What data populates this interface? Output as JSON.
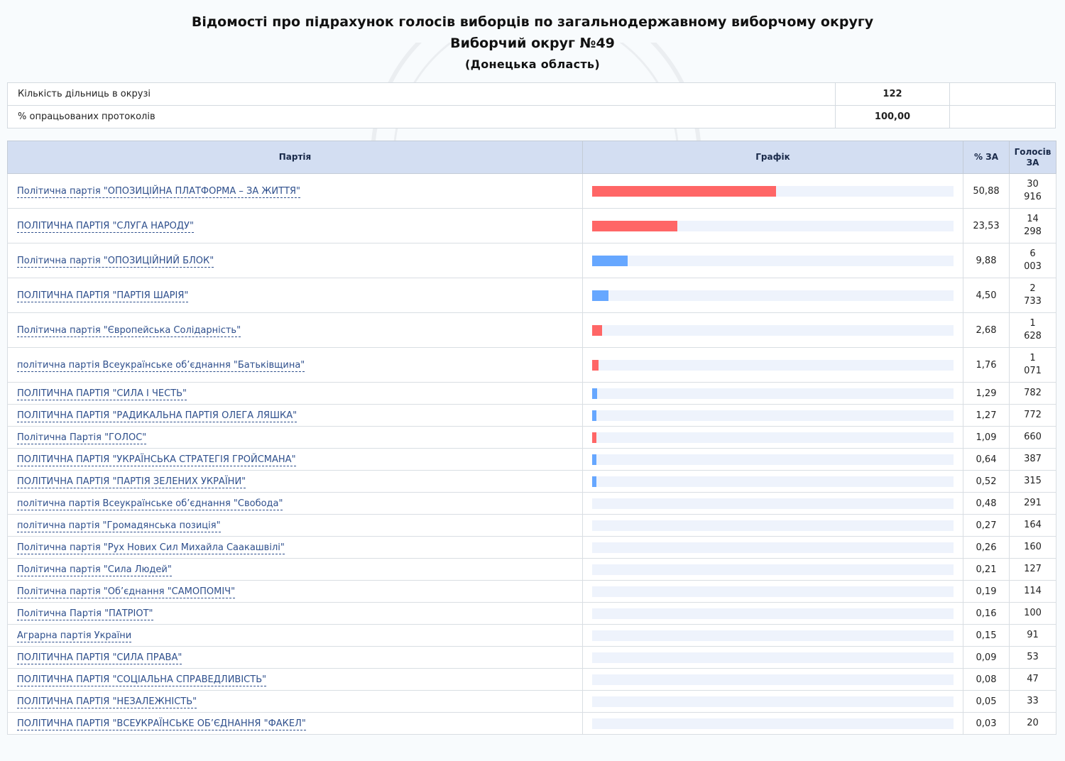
{
  "header": {
    "title": "Відомості про підрахунок голосів виборців по загальнодержавному виборчому округу",
    "district": "Виборчий округ №49",
    "region": "(Донецька область)"
  },
  "info": {
    "stations_label": "Кількість дільниць в окрузі",
    "stations_value": "122",
    "protocols_label": "% опрацьованих протоколів",
    "protocols_value": "100,00"
  },
  "table": {
    "col_party": "Партія",
    "col_chart": "Графік",
    "col_pct": "% ЗА",
    "col_votes_1": "Голосів",
    "col_votes_2": "ЗА"
  },
  "colors": {
    "red": "#ff6666",
    "blue": "#66a7ff"
  },
  "chart_data": {
    "type": "bar",
    "xlim": [
      0,
      100
    ],
    "rows": [
      {
        "party": "Політична партія \"ОПОЗИЦІЙНА ПЛАТФОРМА – ЗА ЖИТТЯ\"",
        "pct": 50.88,
        "pct_label": "50,88",
        "votes_1": "30",
        "votes_2": "916",
        "color": "red"
      },
      {
        "party": "ПОЛІТИЧНА ПАРТІЯ \"СЛУГА НАРОДУ\"",
        "pct": 23.53,
        "pct_label": "23,53",
        "votes_1": "14",
        "votes_2": "298",
        "color": "red"
      },
      {
        "party": "Політична партія \"ОПОЗИЦІЙНИЙ БЛОК\"",
        "pct": 9.88,
        "pct_label": "9,88",
        "votes_1": "6",
        "votes_2": "003",
        "color": "blue"
      },
      {
        "party": "ПОЛІТИЧНА ПАРТІЯ \"ПАРТІЯ ШАРІЯ\"",
        "pct": 4.5,
        "pct_label": "4,50",
        "votes_1": "2",
        "votes_2": "733",
        "color": "blue"
      },
      {
        "party": "Політична партія \"Європейська Солідарність\"",
        "pct": 2.68,
        "pct_label": "2,68",
        "votes_1": "1",
        "votes_2": "628",
        "color": "red"
      },
      {
        "party": "політична партія Всеукраїнське об’єднання \"Батьківщина\"",
        "pct": 1.76,
        "pct_label": "1,76",
        "votes_1": "1",
        "votes_2": "071",
        "color": "red"
      },
      {
        "party": "ПОЛІТИЧНА ПАРТІЯ \"СИЛА І ЧЕСТЬ\"",
        "pct": 1.29,
        "pct_label": "1,29",
        "votes_1": "782",
        "votes_2": "",
        "color": "blue"
      },
      {
        "party": "ПОЛІТИЧНА ПАРТІЯ \"РАДИКАЛЬНА ПАРТІЯ ОЛЕГА ЛЯШКА\"",
        "pct": 1.27,
        "pct_label": "1,27",
        "votes_1": "772",
        "votes_2": "",
        "color": "blue"
      },
      {
        "party": "Політична Партія \"ГОЛОС\"",
        "pct": 1.09,
        "pct_label": "1,09",
        "votes_1": "660",
        "votes_2": "",
        "color": "red"
      },
      {
        "party": "ПОЛІТИЧНА ПАРТІЯ \"УКРАЇНСЬКА СТРАТЕГІЯ ГРОЙСМАНА\"",
        "pct": 0.64,
        "pct_label": "0,64",
        "votes_1": "387",
        "votes_2": "",
        "color": "blue"
      },
      {
        "party": "ПОЛІТИЧНА ПАРТІЯ \"ПАРТІЯ ЗЕЛЕНИХ УКРАЇНИ\"",
        "pct": 0.52,
        "pct_label": "0,52",
        "votes_1": "315",
        "votes_2": "",
        "color": "blue"
      },
      {
        "party": "політична партія Всеукраїнське об’єднання \"Свобода\"",
        "pct": 0.48,
        "pct_label": "0,48",
        "votes_1": "291",
        "votes_2": "",
        "color": "none"
      },
      {
        "party": "політична партія \"Громадянська позиція\"",
        "pct": 0.27,
        "pct_label": "0,27",
        "votes_1": "164",
        "votes_2": "",
        "color": "none"
      },
      {
        "party": "Політична партія \"Рух Нових Сил Михайла Саакашвілі\"",
        "pct": 0.26,
        "pct_label": "0,26",
        "votes_1": "160",
        "votes_2": "",
        "color": "none"
      },
      {
        "party": "Політична партія \"Сила Людей\"",
        "pct": 0.21,
        "pct_label": "0,21",
        "votes_1": "127",
        "votes_2": "",
        "color": "none"
      },
      {
        "party": "Політична партія \"Об’єднання \"САМОПОМІЧ\"",
        "pct": 0.19,
        "pct_label": "0,19",
        "votes_1": "114",
        "votes_2": "",
        "color": "none"
      },
      {
        "party": "Політична Партія \"ПАТРІОТ\"",
        "pct": 0.16,
        "pct_label": "0,16",
        "votes_1": "100",
        "votes_2": "",
        "color": "none"
      },
      {
        "party": "Аграрна партія України",
        "pct": 0.15,
        "pct_label": "0,15",
        "votes_1": "91",
        "votes_2": "",
        "color": "none"
      },
      {
        "party": "ПОЛІТИЧНА ПАРТІЯ \"СИЛА ПРАВА\"",
        "pct": 0.09,
        "pct_label": "0,09",
        "votes_1": "53",
        "votes_2": "",
        "color": "none"
      },
      {
        "party": "ПОЛІТИЧНА ПАРТІЯ \"СОЦІАЛЬНА СПРАВЕДЛИВІСТЬ\"",
        "pct": 0.08,
        "pct_label": "0,08",
        "votes_1": "47",
        "votes_2": "",
        "color": "none"
      },
      {
        "party": "ПОЛІТИЧНА ПАРТІЯ \"НЕЗАЛЕЖНІСТЬ\"",
        "pct": 0.05,
        "pct_label": "0,05",
        "votes_1": "33",
        "votes_2": "",
        "color": "none"
      },
      {
        "party": "ПОЛІТИЧНА ПАРТІЯ \"ВСЕУКРАЇНСЬКЕ ОБ’ЄДНАННЯ \"ФАКЕЛ\"",
        "pct": 0.03,
        "pct_label": "0,03",
        "votes_1": "20",
        "votes_2": "",
        "color": "none"
      }
    ]
  }
}
